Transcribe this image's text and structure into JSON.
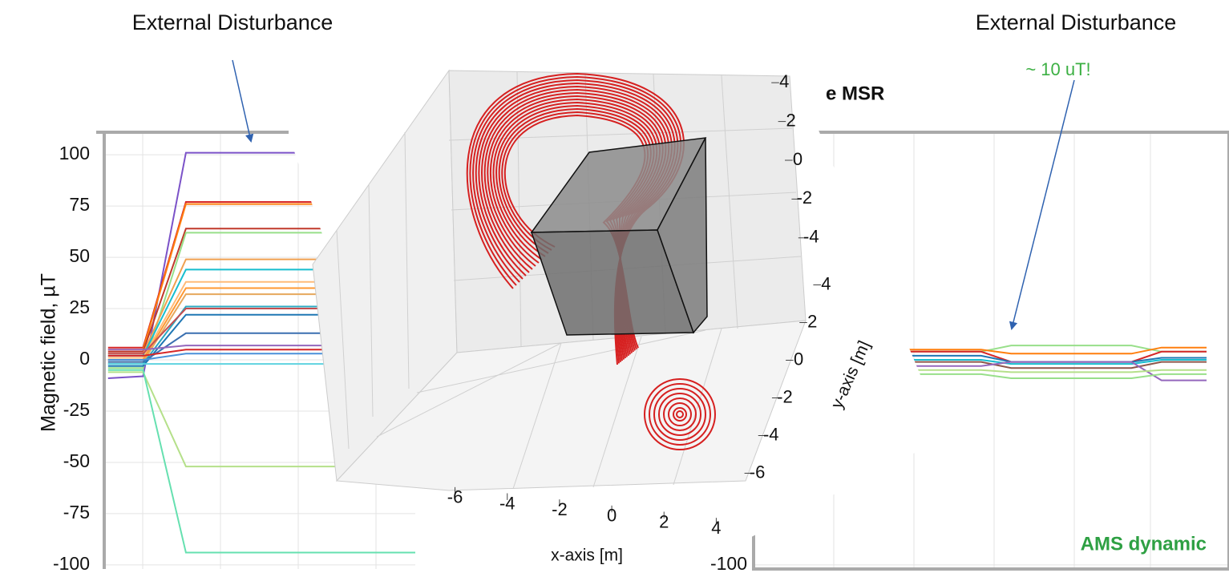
{
  "chart_data": [
    {
      "type": "line",
      "annotation": "External Disturbance",
      "ylabel": "Magnetic field,  µT",
      "x": [
        0.5,
        5,
        10.5,
        40
      ],
      "xlim": [
        0,
        40
      ],
      "ylim": [
        -102,
        111
      ],
      "yticks": [
        100,
        75,
        50,
        25,
        0,
        -25,
        -50,
        -75,
        -100
      ],
      "grid": true,
      "series": [
        {
          "color": "#7b52c8",
          "values": [
            -9,
            -8,
            101,
            101
          ]
        },
        {
          "color": "#d62728",
          "values": [
            6,
            6,
            77,
            77
          ]
        },
        {
          "color": "#ff7f0e",
          "values": [
            5,
            5,
            76,
            76
          ]
        },
        {
          "color": "#c0392b",
          "values": [
            4,
            4,
            64,
            64
          ]
        },
        {
          "color": "#98df8a",
          "values": [
            -4,
            -4,
            62,
            62
          ]
        },
        {
          "color": "#f0a050",
          "values": [
            3,
            3,
            49,
            49
          ]
        },
        {
          "color": "#17becf",
          "values": [
            2,
            2,
            44,
            44
          ]
        },
        {
          "color": "#ffbb78",
          "values": [
            1,
            1,
            38,
            38
          ]
        },
        {
          "color": "#ff9933",
          "values": [
            0,
            0,
            35,
            35
          ]
        },
        {
          "color": "#e6a85c",
          "values": [
            -1,
            -1,
            32,
            32
          ]
        },
        {
          "color": "#2ca8c0",
          "values": [
            -2,
            -2,
            26,
            26
          ]
        },
        {
          "color": "#c44e52",
          "values": [
            3,
            3,
            25,
            25
          ]
        },
        {
          "color": "#1f77b4",
          "values": [
            -3,
            -3,
            22,
            22
          ]
        },
        {
          "color": "#3a6fb0",
          "values": [
            -1,
            -1,
            13,
            13
          ]
        },
        {
          "color": "#9467bd",
          "values": [
            5,
            5,
            7,
            7
          ]
        },
        {
          "color": "#d62728",
          "values": [
            2,
            2,
            5,
            5
          ]
        },
        {
          "color": "#4a90d9",
          "values": [
            0,
            0,
            3,
            3
          ]
        },
        {
          "color": "#5fd3e0",
          "values": [
            -2,
            -2,
            -2,
            -2
          ]
        },
        {
          "color": "#b5e08a",
          "values": [
            -6,
            -6,
            -52,
            -52
          ]
        },
        {
          "color": "#66e0b0",
          "values": [
            -5,
            -5,
            -94,
            -94
          ]
        }
      ]
    },
    {
      "type": "3d",
      "xlabel": "x-axis [m]",
      "ylabel": "y-axis [m]",
      "xlim": [
        -7,
        5
      ],
      "ylim": [
        -7,
        5
      ],
      "zlim": [
        -5,
        5
      ],
      "xticks": [
        -6,
        -4,
        -2,
        0,
        2,
        4
      ],
      "yticks": [
        -6,
        -4,
        -2,
        0,
        2,
        4
      ],
      "zticks": [
        -4,
        -2,
        0,
        2,
        4
      ]
    },
    {
      "type": "line",
      "title": "e MSR",
      "annotations": [
        "External Disturbance",
        "~ 10 uT!",
        "AMS dynamic"
      ],
      "x": [
        0,
        10,
        14,
        30,
        34,
        40
      ],
      "xlim": [
        0,
        40
      ],
      "ylim": [
        -102,
        111
      ],
      "yticks": [
        -100
      ],
      "grid": true,
      "series": [
        {
          "color": "#98df8a",
          "values": [
            4,
            4,
            7,
            7,
            4,
            4
          ]
        },
        {
          "color": "#ff7f0e",
          "values": [
            5,
            5,
            3,
            3,
            6,
            6
          ]
        },
        {
          "color": "#d62728",
          "values": [
            4,
            4,
            -1,
            -1,
            4,
            4
          ]
        },
        {
          "color": "#1f77b4",
          "values": [
            2,
            2,
            -1,
            -1,
            1,
            1
          ]
        },
        {
          "color": "#17becf",
          "values": [
            0,
            0,
            -2,
            -2,
            0,
            0
          ]
        },
        {
          "color": "#8c564b",
          "values": [
            -1,
            -1,
            -4,
            -4,
            -1,
            -1
          ]
        },
        {
          "color": "#9467bd",
          "values": [
            -3,
            -3,
            -1,
            -1,
            -10,
            -10
          ]
        },
        {
          "color": "#b5e08a",
          "values": [
            -5,
            -5,
            -6,
            -6,
            -5,
            -5
          ]
        },
        {
          "color": "#98df8a",
          "values": [
            -7,
            -7,
            -9,
            -9,
            -7,
            -7
          ]
        }
      ]
    }
  ]
}
